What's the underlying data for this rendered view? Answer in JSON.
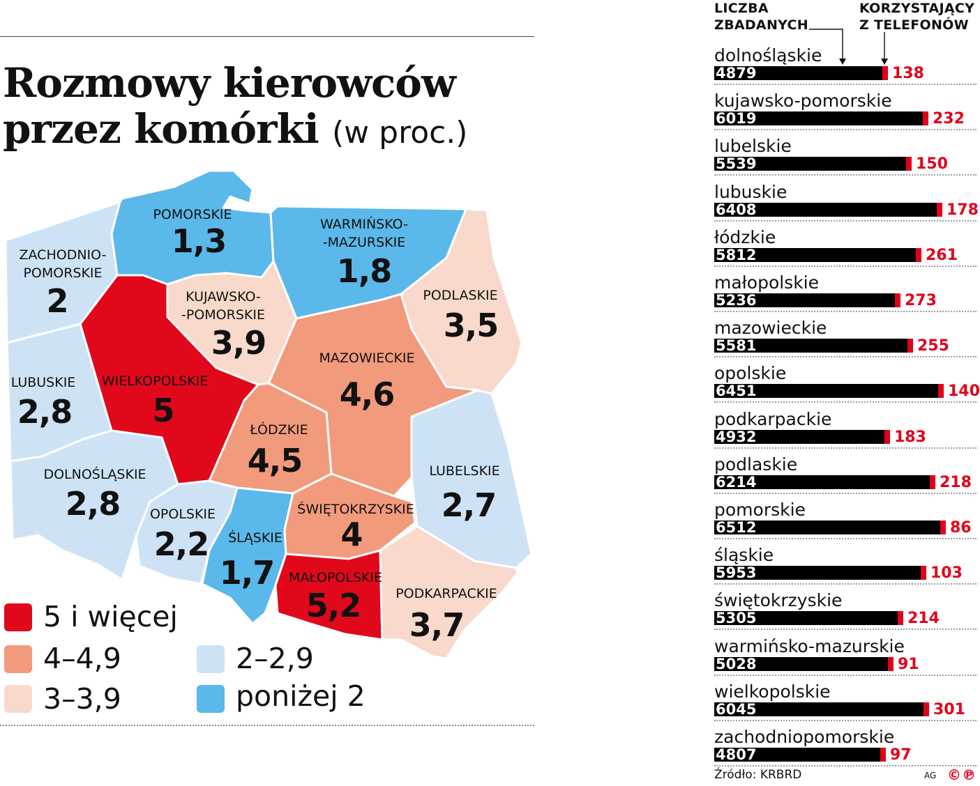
{
  "title": {
    "main_line1": "Rozmowy kierowców",
    "main_line2": "przez komórki",
    "unit": "(w proc.)"
  },
  "colors": {
    "c5plus": "#e2081c",
    "c4": "#f29a7c",
    "c3": "#f9d9cb",
    "c2": "#cde3f5",
    "cbelow2": "#5bb8ea",
    "bar": "#000000",
    "phone": "#e2001a"
  },
  "map": {
    "regions": [
      {
        "id": "zachodniopomorskie",
        "name_lines": [
          "ZACHODNIO-",
          "POMORSKIE"
        ],
        "value": "2",
        "category": "c2"
      },
      {
        "id": "pomorskie",
        "name_lines": [
          "POMORSKIE"
        ],
        "value": "1,3",
        "category": "cbelow2"
      },
      {
        "id": "warminsko-mazurskie",
        "name_lines": [
          "WARMIŃSKO-",
          "-MAZURSKIE"
        ],
        "value": "1,8",
        "category": "cbelow2"
      },
      {
        "id": "podlaskie",
        "name_lines": [
          "PODLASKIE"
        ],
        "value": "3,5",
        "category": "c3"
      },
      {
        "id": "kujawsko-pomorskie",
        "name_lines": [
          "KUJAWSKO-",
          "-POMORSKIE"
        ],
        "value": "3,9",
        "category": "c3"
      },
      {
        "id": "wielkopolskie",
        "name_lines": [
          "WIELKOPOLSKIE"
        ],
        "value": "5",
        "category": "c5plus"
      },
      {
        "id": "lubuskie",
        "name_lines": [
          "LUBUSKIE"
        ],
        "value": "2,8",
        "category": "c2"
      },
      {
        "id": "mazowieckie",
        "name_lines": [
          "MAZOWIECKIE"
        ],
        "value": "4,6",
        "category": "c4"
      },
      {
        "id": "lodzkie",
        "name_lines": [
          "ŁÓDZKIE"
        ],
        "value": "4,5",
        "category": "c4"
      },
      {
        "id": "dolnoslaskie",
        "name_lines": [
          "DOLNOŚLĄSKIE"
        ],
        "value": "2,8",
        "category": "c2"
      },
      {
        "id": "opolskie",
        "name_lines": [
          "OPOLSKIE"
        ],
        "value": "2,2",
        "category": "c2"
      },
      {
        "id": "slaskie",
        "name_lines": [
          "ŚLĄSKIE"
        ],
        "value": "1,7",
        "category": "cbelow2"
      },
      {
        "id": "swietokrzyskie",
        "name_lines": [
          "ŚWIĘTOKRZYSKIE"
        ],
        "value": "4",
        "category": "c4"
      },
      {
        "id": "lubelskie",
        "name_lines": [
          "LUBELSKIE"
        ],
        "value": "2,7",
        "category": "c2"
      },
      {
        "id": "malopolskie",
        "name_lines": [
          "MAŁOPOLSKIE"
        ],
        "value": "5,2",
        "category": "c5plus"
      },
      {
        "id": "podkarpackie",
        "name_lines": [
          "PODKARPACKIE"
        ],
        "value": "3,7",
        "category": "c3"
      }
    ]
  },
  "legend": [
    {
      "category": "c5plus",
      "label": "5 i więcej"
    },
    {
      "category": "c4",
      "label": "4–4,9"
    },
    {
      "category": "c3",
      "label": "3–3,9"
    },
    {
      "category": "c2",
      "label": "2–2,9"
    },
    {
      "category": "cbelow2",
      "label": "poniżej 2"
    }
  ],
  "chart_data": {
    "type": "bar",
    "headers": {
      "total": [
        "LICZBA",
        "ZBADANYCH"
      ],
      "phone": [
        "KORZYSTAJĄCY",
        "Z TELEFONÓW"
      ]
    },
    "categories": [
      "dolnośląskie",
      "kujawsko-pomorskie",
      "lubelskie",
      "lubuskie",
      "łódzkie",
      "małopolskie",
      "mazowieckie",
      "opolskie",
      "podkarpackie",
      "podlaskie",
      "pomorskie",
      "śląskie",
      "świętokrzyskie",
      "warmińsko-mazurskie",
      "wielkopolskie",
      "zachodniopomorskie"
    ],
    "series": [
      {
        "name": "LICZBA ZBADANYCH",
        "values": [
          4879,
          6019,
          5539,
          6408,
          5812,
          5236,
          5581,
          6451,
          4932,
          6214,
          6512,
          5953,
          5305,
          5028,
          6045,
          4807
        ]
      },
      {
        "name": "KORZYSTAJĄCY Z TELEFONÓW",
        "values": [
          138,
          232,
          150,
          178,
          261,
          273,
          255,
          140,
          183,
          218,
          86,
          103,
          214,
          91,
          301,
          97
        ]
      }
    ]
  },
  "footer": {
    "source": "Źródło: KRBRD",
    "author": "AG",
    "logo": "©℗"
  }
}
